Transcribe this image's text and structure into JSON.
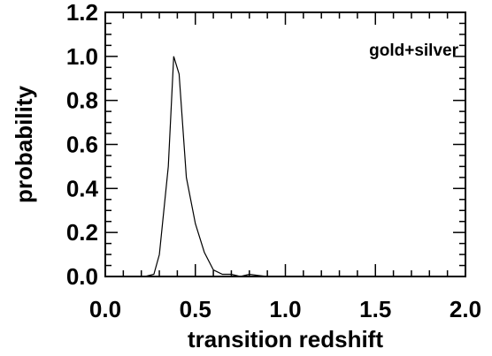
{
  "chart_data": {
    "type": "line",
    "title": "",
    "xlabel": "transition redshift",
    "ylabel": "probability",
    "annotation": "gold+silver",
    "xlim": [
      0.0,
      2.0
    ],
    "ylim": [
      0.0,
      1.2
    ],
    "x_ticks": [
      "0.0",
      "0.5",
      "1.0",
      "1.5",
      "2.0"
    ],
    "y_ticks": [
      "0.0",
      "0.2",
      "0.4",
      "0.6",
      "0.8",
      "1.0",
      "1.2"
    ],
    "x_tick_values": [
      0.0,
      0.5,
      1.0,
      1.5,
      2.0
    ],
    "y_tick_values": [
      0.0,
      0.2,
      0.4,
      0.6,
      0.8,
      1.0,
      1.2
    ],
    "grid": false,
    "series": [
      {
        "x": [
          0.0,
          0.22,
          0.27,
          0.3,
          0.35,
          0.38,
          0.41,
          0.45,
          0.5,
          0.55,
          0.6,
          0.65,
          0.7,
          0.75,
          0.8,
          0.85,
          0.9,
          1.0,
          1.5,
          2.0
        ],
        "y": [
          0.0,
          0.0,
          0.01,
          0.1,
          0.5,
          1.0,
          0.92,
          0.45,
          0.24,
          0.11,
          0.03,
          0.01,
          0.01,
          0.0,
          0.01,
          0.005,
          0.0,
          0.0,
          0.0,
          0.0
        ]
      }
    ]
  }
}
